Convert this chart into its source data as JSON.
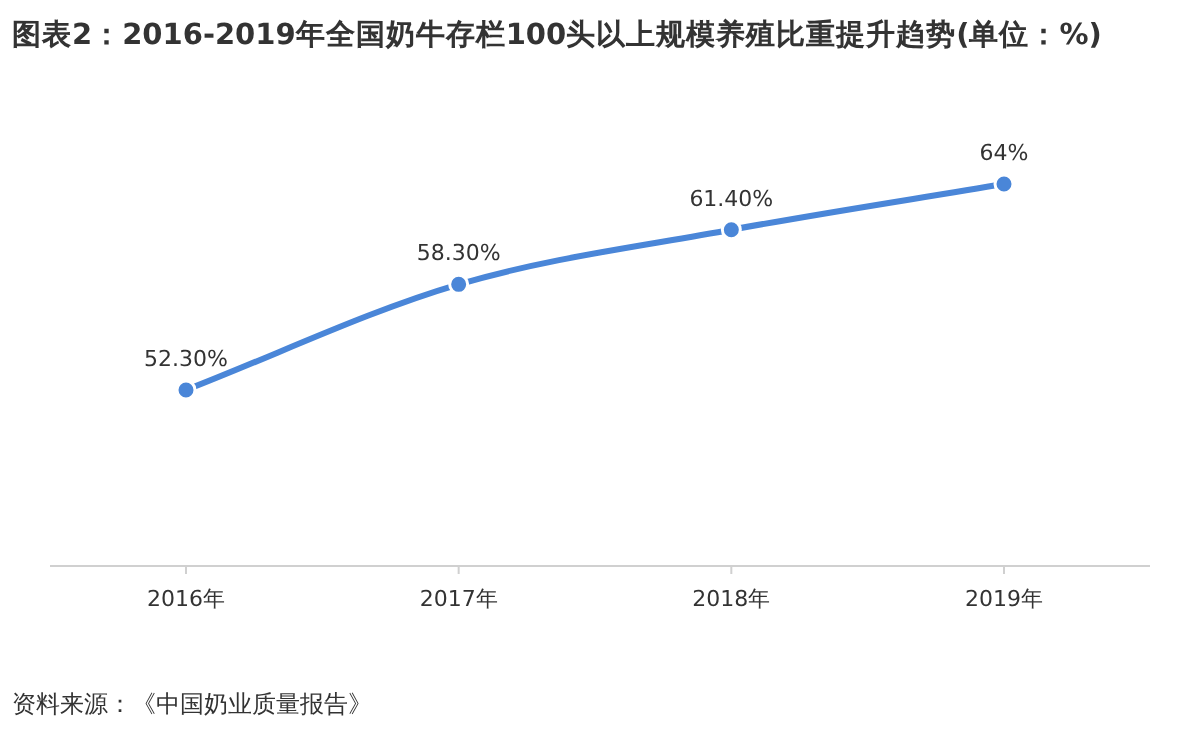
{
  "chart_data": {
    "type": "line",
    "title": "图表2：2016-2019年全国奶牛存栏100头以上规模养殖比重提升趋势(单位：%)",
    "categories": [
      "2016年",
      "2017年",
      "2018年",
      "2019年"
    ],
    "series": [
      {
        "color": "#4a86d8",
        "values": [
          52.3,
          58.3,
          61.4,
          64
        ],
        "value_labels": [
          "52.30%",
          "58.30%",
          "61.40%",
          "64%"
        ]
      }
    ],
    "marker": "circle",
    "annotations": [
      "资料来源：《中国奶业质量报告》"
    ]
  }
}
